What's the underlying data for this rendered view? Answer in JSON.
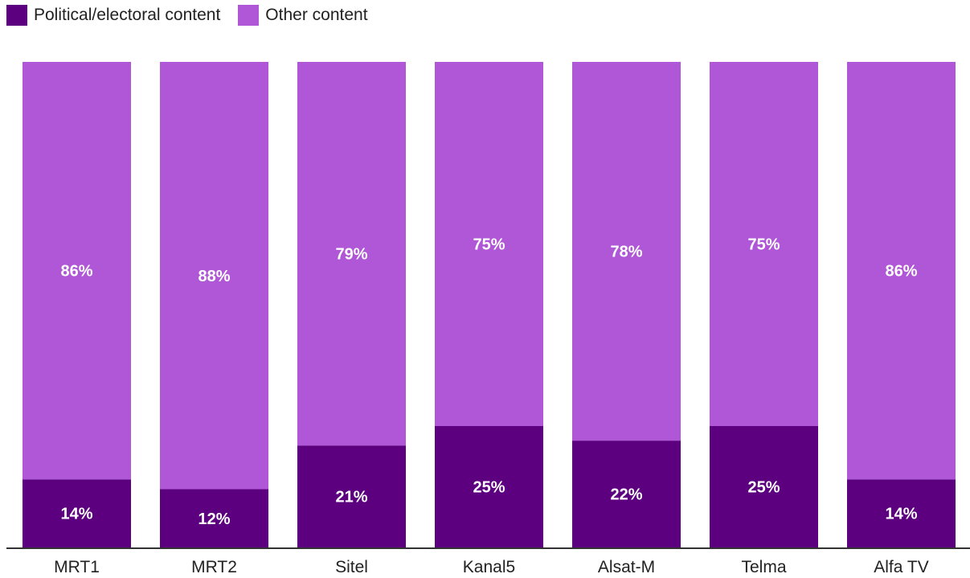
{
  "legend": {
    "items": [
      {
        "label": "Political/electoral content",
        "color": "#5c0080"
      },
      {
        "label": "Other content",
        "color": "#af57d6"
      }
    ]
  },
  "chart_data": {
    "type": "bar",
    "stacked": true,
    "categories": [
      "MRT1",
      "MRT2",
      "Sitel",
      "Kanal5",
      "Alsat-M",
      "Telma",
      "Alfa TV"
    ],
    "series": [
      {
        "name": "Political/electoral content",
        "color": "#5c0080",
        "values": [
          14,
          12,
          21,
          25,
          22,
          25,
          14
        ]
      },
      {
        "name": "Other content",
        "color": "#af57d6",
        "values": [
          86,
          88,
          79,
          75,
          78,
          75,
          86
        ]
      }
    ],
    "value_labels": {
      "Political/electoral content": [
        "14%",
        "12%",
        "21%",
        "25%",
        "22%",
        "25%",
        "14%"
      ],
      "Other content": [
        "86%",
        "88%",
        "79%",
        "75%",
        "78%",
        "75%",
        "86%"
      ]
    },
    "ylim": [
      0,
      100
    ],
    "grid": false,
    "legend_position": "top-left"
  }
}
